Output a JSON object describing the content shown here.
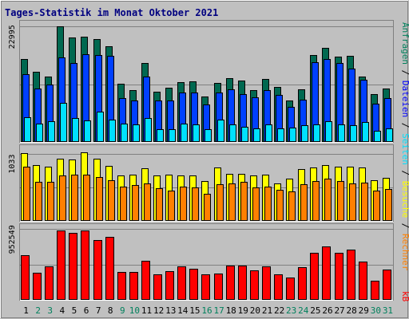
{
  "title": "Tages-Statistik im Monat Oktober 2021",
  "colors": {
    "background": "#c0c0c0",
    "border_dark": "#808080",
    "border_light": "#ffffff",
    "title": "#000080",
    "grid": "#808080",
    "hits": "#006850",
    "files": "#0040ff",
    "pages": "#00e0ff",
    "visits": "#ffff00",
    "sites": "#ff8000",
    "kbytes": "#ff0000",
    "weekday_label": "#000000",
    "weekend_label": "#00805c"
  },
  "right_labels": {
    "top": [
      {
        "text": "Anfragen",
        "color": "#00805c"
      },
      {
        "text": " / ",
        "color": "#000000"
      },
      {
        "text": "Dateien",
        "color": "#0000ff"
      },
      {
        "text": " / ",
        "color": "#000000"
      },
      {
        "text": "Seiten",
        "color": "#00e0ff"
      },
      {
        "text": " / ",
        "color": "#000000"
      },
      {
        "text": "Besuche",
        "color": "#ffff00"
      },
      {
        "text": " / ",
        "color": "#000000"
      },
      {
        "text": "Rechner",
        "color": "#ff8000"
      }
    ],
    "bottom": {
      "text": "kB",
      "color": "#ff0000"
    }
  },
  "chart_data": [
    {
      "type": "bar",
      "panel": "requests",
      "ytick_label": "22995",
      "ylim": [
        0,
        24000
      ],
      "x": [
        "1",
        "2",
        "3",
        "4",
        "5",
        "6",
        "7",
        "8",
        "9",
        "10",
        "11",
        "12",
        "13",
        "14",
        "15",
        "16",
        "17",
        "18",
        "19",
        "20",
        "21",
        "22",
        "23",
        "24",
        "25",
        "26",
        "27",
        "28",
        "29",
        "30",
        "31"
      ],
      "series": [
        {
          "name": "Anfragen",
          "values": [
            16500,
            14000,
            13000,
            23000,
            20800,
            21000,
            20500,
            19000,
            11600,
            10300,
            15700,
            10000,
            10800,
            12000,
            12100,
            9100,
            11800,
            12700,
            12200,
            10300,
            12600,
            11000,
            8300,
            10500,
            17400,
            18800,
            17000,
            17100,
            13000,
            9600,
            10600
          ]
        },
        {
          "name": "Dateien",
          "values": [
            13500,
            10700,
            11500,
            16800,
            15700,
            17500,
            17300,
            17100,
            8800,
            8300,
            13100,
            8300,
            8200,
            9800,
            9800,
            7500,
            9800,
            10500,
            9500,
            8900,
            10400,
            9300,
            7000,
            8400,
            15900,
            16600,
            15700,
            14700,
            12400,
            7600,
            8800
          ]
        },
        {
          "name": "Seiten",
          "values": [
            4900,
            3600,
            4200,
            7800,
            4700,
            4300,
            6000,
            4400,
            3600,
            3500,
            4800,
            2600,
            2600,
            3600,
            3500,
            2500,
            4500,
            3500,
            3000,
            2700,
            3500,
            2700,
            2900,
            3400,
            3500,
            4100,
            3500,
            3400,
            4000,
            2200,
            2700
          ]
        }
      ]
    },
    {
      "type": "bar",
      "panel": "visits",
      "ytick_label": "1033",
      "ylim": [
        0,
        1150
      ],
      "x": [
        "1",
        "2",
        "3",
        "4",
        "5",
        "6",
        "7",
        "8",
        "9",
        "10",
        "11",
        "12",
        "13",
        "14",
        "15",
        "16",
        "17",
        "18",
        "19",
        "20",
        "21",
        "22",
        "23",
        "24",
        "25",
        "26",
        "27",
        "28",
        "29",
        "30",
        "31"
      ],
      "series": [
        {
          "name": "Besuche",
          "values": [
            1040,
            860,
            830,
            960,
            940,
            1050,
            950,
            840,
            700,
            710,
            810,
            700,
            710,
            700,
            700,
            610,
            820,
            720,
            720,
            700,
            710,
            580,
            650,
            800,
            820,
            860,
            830,
            830,
            820,
            630,
            660
          ]
        },
        {
          "name": "Rechner",
          "values": [
            830,
            600,
            600,
            700,
            710,
            710,
            670,
            620,
            530,
            550,
            580,
            500,
            470,
            520,
            510,
            420,
            560,
            570,
            600,
            510,
            520,
            480,
            450,
            560,
            610,
            650,
            610,
            580,
            590,
            470,
            490
          ]
        }
      ]
    },
    {
      "type": "bar",
      "panel": "kbytes",
      "ytick_label": "952549",
      "ylim": [
        0,
        1010000
      ],
      "x": [
        "1",
        "2",
        "3",
        "4",
        "5",
        "6",
        "7",
        "8",
        "9",
        "10",
        "11",
        "12",
        "13",
        "14",
        "15",
        "16",
        "17",
        "18",
        "19",
        "20",
        "21",
        "22",
        "23",
        "24",
        "25",
        "26",
        "27",
        "28",
        "29",
        "30",
        "31"
      ],
      "series": [
        {
          "name": "kB",
          "values": [
            600000,
            370000,
            450000,
            940000,
            900000,
            930000,
            810000,
            850000,
            380000,
            380000,
            530000,
            340000,
            390000,
            450000,
            420000,
            340000,
            350000,
            460000,
            460000,
            400000,
            450000,
            340000,
            300000,
            440000,
            630000,
            720000,
            630000,
            680000,
            520000,
            260000,
            410000
          ]
        }
      ]
    }
  ]
}
